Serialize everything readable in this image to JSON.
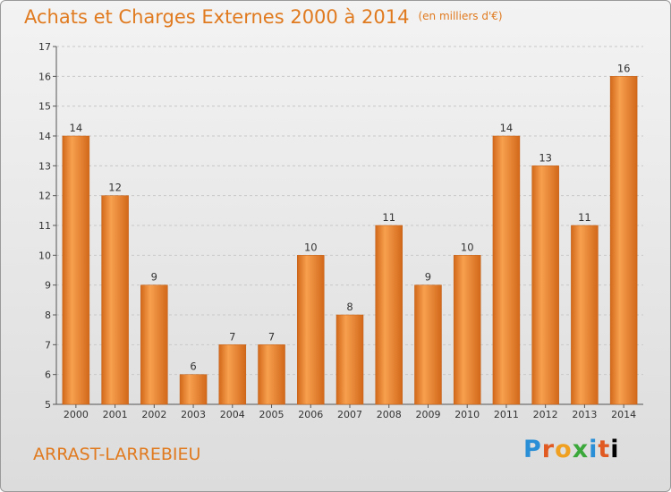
{
  "header": {
    "title": "Achats et Charges Externes 2000 à 2014",
    "unit": "(en milliers d'€)"
  },
  "footer": {
    "town": "ARRAST-LARREBIEU",
    "logo_text": "Proxiti"
  },
  "colors": {
    "bar_light": "#f7a04e",
    "bar_dark": "#d2681a",
    "title": "#e07a1f",
    "grid": "#c8c8c8"
  },
  "chart_data": {
    "type": "bar",
    "title": "Achats et Charges Externes 2000 à 2014",
    "xlabel": "",
    "ylabel": "",
    "categories": [
      "2000",
      "2001",
      "2002",
      "2003",
      "2004",
      "2005",
      "2006",
      "2007",
      "2008",
      "2009",
      "2010",
      "2011",
      "2012",
      "2013",
      "2014"
    ],
    "values": [
      14,
      12,
      9,
      6,
      7,
      7,
      10,
      8,
      11,
      9,
      10,
      14,
      13,
      11,
      16
    ],
    "ylim": [
      5,
      17
    ],
    "yticks": [
      5,
      6,
      7,
      8,
      9,
      10,
      11,
      12,
      13,
      14,
      15,
      16,
      17
    ],
    "grid": true,
    "data_labels": true
  }
}
